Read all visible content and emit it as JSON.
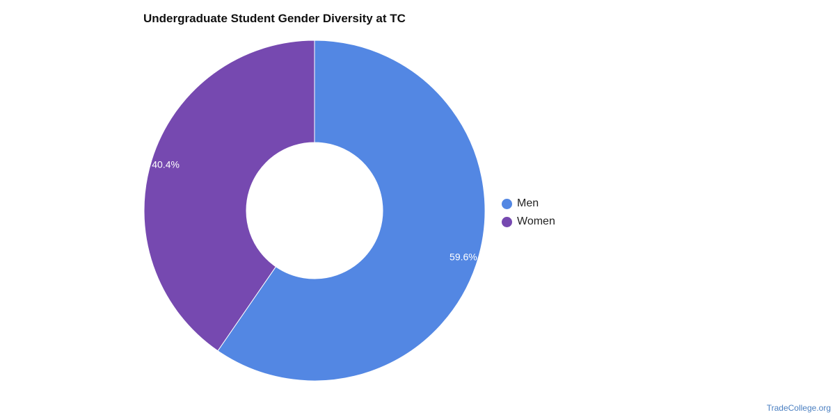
{
  "chart_data": {
    "type": "pie",
    "title": "Undergraduate Student Gender Diversity at TC",
    "categories": [
      "Men",
      "Women"
    ],
    "values": [
      59.6,
      40.4
    ],
    "value_labels": [
      "59.6%",
      "40.4%"
    ],
    "colors": [
      "#5387e3",
      "#7649b0"
    ],
    "donut": true,
    "legend_position": "right"
  },
  "credit": "TradeCollege.org"
}
